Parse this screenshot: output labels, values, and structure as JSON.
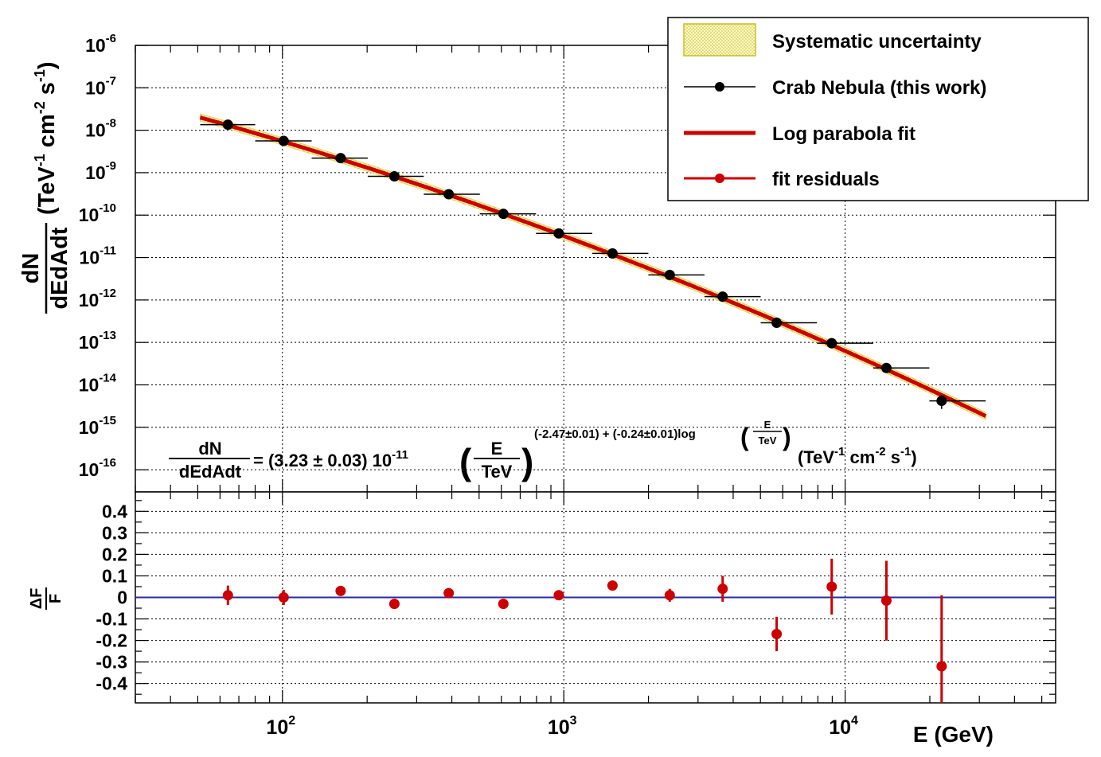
{
  "chart_data": [
    {
      "type": "scatter",
      "panel": "spectrum",
      "xscale": "log",
      "yscale": "log",
      "xlim": [
        30,
        56000
      ],
      "ylim": [
        3e-17,
        1e-06
      ],
      "grid": true,
      "ylabel": {
        "main": "(TeV",
        "sup1": "-1",
        "mid": " cm",
        "sup2": "-2",
        "end": " s",
        "sup3": "-1",
        "close": ")"
      },
      "ylabel_fraction": {
        "num": "dN",
        "den": "dEdAdt"
      },
      "ytick_labels": [
        {
          "exp": -6,
          "text": "10",
          "sup": "-6"
        },
        {
          "exp": -7,
          "text": "10",
          "sup": "-7"
        },
        {
          "exp": -8,
          "text": "10",
          "sup": "-8"
        },
        {
          "exp": -9,
          "text": "10",
          "sup": "-9"
        },
        {
          "exp": -10,
          "text": "10",
          "sup": "-10"
        },
        {
          "exp": -11,
          "text": "10",
          "sup": "-11"
        },
        {
          "exp": -12,
          "text": "10",
          "sup": "-12"
        },
        {
          "exp": -13,
          "text": "10",
          "sup": "-13"
        },
        {
          "exp": -14,
          "text": "10",
          "sup": "-14"
        },
        {
          "exp": -15,
          "text": "10",
          "sup": "-15"
        },
        {
          "exp": -16,
          "text": "10",
          "sup": "-16"
        }
      ],
      "series": [
        {
          "name": "Crab Nebula (this work)",
          "color": "#000000",
          "points": [
            {
              "x": 64,
              "y": 1.35e-08,
              "xlo": 51,
              "xhi": 80
            },
            {
              "x": 101,
              "y": 5.6e-09,
              "xlo": 80,
              "xhi": 127
            },
            {
              "x": 161,
              "y": 2.2e-09,
              "xlo": 127,
              "xhi": 201
            },
            {
              "x": 250,
              "y": 8.2e-10,
              "xlo": 201,
              "xhi": 318
            },
            {
              "x": 390,
              "y": 3.1e-10,
              "xlo": 318,
              "xhi": 503
            },
            {
              "x": 610,
              "y": 1.07e-10,
              "xlo": 503,
              "xhi": 797
            },
            {
              "x": 960,
              "y": 3.7e-11,
              "xlo": 797,
              "xhi": 1262
            },
            {
              "x": 1490,
              "y": 1.25e-11,
              "xlo": 1262,
              "xhi": 1998
            },
            {
              "x": 2380,
              "y": 3.9e-12,
              "xlo": 1998,
              "xhi": 3163
            },
            {
              "x": 3670,
              "y": 1.2e-12,
              "xlo": 3163,
              "xhi": 5010
            },
            {
              "x": 5710,
              "y": 2.9e-13,
              "xlo": 5010,
              "xhi": 7940
            },
            {
              "x": 8960,
              "y": 9.6e-14,
              "xlo": 7940,
              "xhi": 12580
            },
            {
              "x": 14020,
              "y": 2.5e-14,
              "xlo": 12580,
              "xhi": 19930
            },
            {
              "x": 22030,
              "y": 4.2e-15,
              "xlo": 19930,
              "xhi": 31600,
              "ylo": 2.7e-15,
              "yhi": 5.8e-15
            }
          ]
        },
        {
          "name": "Log parabola fit",
          "color": "#cc0000",
          "function": "log_parabola",
          "norm": 3.23e-11,
          "a": -2.47,
          "b": -0.24,
          "xrange": [
            51,
            31600
          ]
        },
        {
          "name": "Systematic uncertainty",
          "color": "#e8e060",
          "band": true,
          "xrange": [
            51,
            31600
          ],
          "rel_width": 0.22
        }
      ],
      "legend": {
        "position": "top-right",
        "entries": [
          {
            "label": "Systematic uncertainty",
            "style": "band"
          },
          {
            "label": "Crab Nebula (this work)",
            "style": "marker-black"
          },
          {
            "label": "Log parabola fit",
            "style": "line-red"
          },
          {
            "label": "fit residuals",
            "style": "marker-red"
          }
        ]
      },
      "formula": {
        "lhs_num": "dN",
        "lhs_den": "dEdAdt",
        "eq": "= (3.23 ± 0.03) 10",
        "eq_sup": "-11",
        "frac_num": "E",
        "frac_den": "TeV",
        "exponent": "(-2.47±0.01) + (-0.24±0.01)log",
        "log_num": "E",
        "log_den": "TeV",
        "units_main": "(TeV",
        "units_sup1": "-1",
        "units_mid": " cm",
        "units_sup2": "-2",
        "units_end": " s",
        "units_sup3": "-1",
        "units_close": ")"
      }
    },
    {
      "type": "scatter",
      "panel": "residuals",
      "xscale": "log",
      "ylim": [
        -0.49,
        0.49
      ],
      "grid": true,
      "ylabel": {
        "num": "ΔF",
        "den": "F"
      },
      "xlabel": "E (GeV)",
      "yticks": [
        {
          "v": 0.4,
          "label": "0.4"
        },
        {
          "v": 0.3,
          "label": "0.3"
        },
        {
          "v": 0.2,
          "label": "0.2"
        },
        {
          "v": 0.1,
          "label": "0.1"
        },
        {
          "v": 0,
          "label": "0"
        },
        {
          "v": -0.1,
          "label": "-0.1"
        },
        {
          "v": -0.2,
          "label": "-0.2"
        },
        {
          "v": -0.3,
          "label": "-0.3"
        },
        {
          "v": -0.4,
          "label": "-0.4"
        }
      ],
      "xtick_labels": [
        {
          "v": 100,
          "text": "10",
          "sup": "2"
        },
        {
          "v": 1000,
          "text": "10",
          "sup": "3"
        },
        {
          "v": 10000,
          "text": "10",
          "sup": "4"
        }
      ],
      "zero_line_color": "#2a2aa0",
      "series": [
        {
          "name": "fit residuals",
          "color": "#cc0000",
          "points": [
            {
              "x": 64,
              "y": 0.01,
              "err": 0.045
            },
            {
              "x": 101,
              "y": 0.0,
              "err": 0.035
            },
            {
              "x": 161,
              "y": 0.03,
              "err": 0.02
            },
            {
              "x": 250,
              "y": -0.03,
              "err": 0.012
            },
            {
              "x": 390,
              "y": 0.02,
              "err": 0.015
            },
            {
              "x": 610,
              "y": -0.03,
              "err": 0.012
            },
            {
              "x": 960,
              "y": 0.01,
              "err": 0.015
            },
            {
              "x": 1490,
              "y": 0.055,
              "err": 0.02
            },
            {
              "x": 2380,
              "y": 0.01,
              "err": 0.03
            },
            {
              "x": 3670,
              "y": 0.04,
              "err": 0.06
            },
            {
              "x": 5710,
              "y": -0.17,
              "err": 0.08
            },
            {
              "x": 8960,
              "y": 0.05,
              "err": 0.13
            },
            {
              "x": 14020,
              "y": -0.015,
              "err": 0.185
            },
            {
              "x": 22030,
              "y": -0.32,
              "err": 0.33
            }
          ]
        }
      ]
    }
  ]
}
